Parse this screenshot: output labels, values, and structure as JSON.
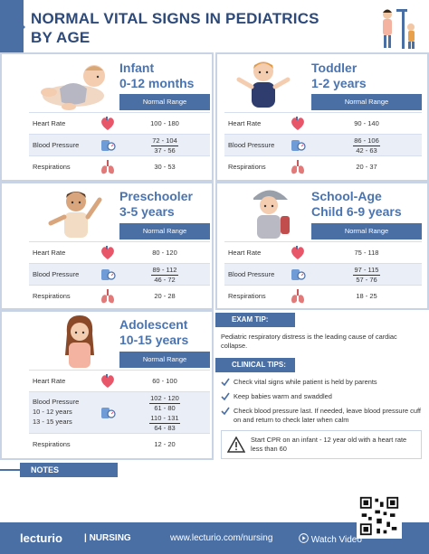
{
  "header": {
    "title_line1": "NORMAL VITAL SIGNS IN PEDIATRICS",
    "title_line2": "BY AGE"
  },
  "table_header": "Normal Range",
  "labels": {
    "heart_rate": "Heart Rate",
    "blood_pressure": "Blood Pressure",
    "respirations": "Respirations"
  },
  "infant": {
    "name": "Infant",
    "range": "0-12 months",
    "heart_rate": "100 - 180",
    "bp_systolic": "72 - 104",
    "bp_diastolic": "37 - 56",
    "respirations": "30 - 53"
  },
  "toddler": {
    "name": "Toddler",
    "range": "1-2 years",
    "heart_rate": "90 - 140",
    "bp_systolic": "86 - 106",
    "bp_diastolic": "42 - 63",
    "respirations": "20 - 37"
  },
  "preschooler": {
    "name": "Preschooler",
    "range": "3-5 years",
    "heart_rate": "80 - 120",
    "bp_systolic": "89 - 112",
    "bp_diastolic": "46 - 72",
    "respirations": "20 - 28"
  },
  "school_age": {
    "name": "School-Age",
    "range": "Child  6-9 years",
    "heart_rate": "75 - 118",
    "bp_systolic": "97 - 115",
    "bp_diastolic": "57 - 76",
    "respirations": "18 - 25"
  },
  "adolescent": {
    "name": "Adolescent",
    "range": "10-15 years",
    "heart_rate": "60 - 100",
    "bp_sub1": "10 - 12 years",
    "bp_sub2": "13 - 15 years",
    "bp1_systolic": "102 - 120",
    "bp1_diastolic": "61 - 80",
    "bp2_systolic": "110 - 131",
    "bp2_diastolic": "64 - 83",
    "respirations": "12 - 20"
  },
  "exam_tip": {
    "label": "EXAM TIP:",
    "text": "Pediatric respiratory distress is the leading cause of cardiac collapse."
  },
  "clinical_tips": {
    "label": "CLINICAL TIPS:",
    "items": [
      "Check vital signs while patient is held by parents",
      "Keep babies warm and swaddled",
      "Check blood pressure last. If needed, leave blood pressure cuff on and return to check later when calm"
    ],
    "warning": "Start CPR on an infant - 12 year old with a heart rate less than 60"
  },
  "notes_label": "NOTES",
  "footer": {
    "brand": "lecturio",
    "brand_sub": "| NURSING",
    "url": "www.lecturio.com/nursing",
    "video": "Watch Video"
  },
  "colors": {
    "primary": "#4a6fa5",
    "title": "#2d4a7a",
    "age_title": "#4a74b0",
    "heart": "#e8566a",
    "lungs": "#e27a7a"
  }
}
